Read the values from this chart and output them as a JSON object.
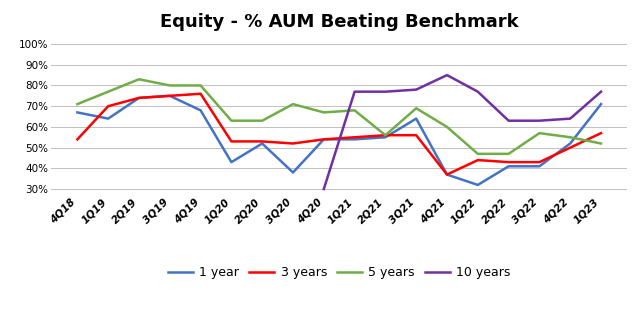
{
  "title": "Equity - % AUM Beating Benchmark",
  "categories": [
    "4Q18",
    "1Q19",
    "2Q19",
    "3Q19",
    "4Q19",
    "1Q20",
    "2Q20",
    "3Q20",
    "4Q20",
    "1Q21",
    "2Q21",
    "3Q21",
    "4Q21",
    "1Q22",
    "2Q22",
    "3Q22",
    "4Q22",
    "1Q23"
  ],
  "series": {
    "1 year": [
      0.67,
      0.64,
      0.74,
      0.75,
      0.68,
      0.43,
      0.52,
      0.38,
      0.54,
      0.54,
      0.55,
      0.64,
      0.37,
      0.32,
      0.41,
      0.41,
      0.52,
      0.71
    ],
    "3 years": [
      0.54,
      0.7,
      0.74,
      0.75,
      0.76,
      0.53,
      0.53,
      0.52,
      0.54,
      0.55,
      0.56,
      0.56,
      0.37,
      0.44,
      0.43,
      0.43,
      0.5,
      0.57
    ],
    "5 years": [
      0.71,
      0.77,
      0.83,
      0.8,
      0.8,
      0.63,
      0.63,
      0.71,
      0.67,
      0.68,
      0.56,
      0.69,
      0.6,
      0.47,
      0.47,
      0.57,
      0.55,
      0.52
    ],
    "10 years": [
      null,
      null,
      null,
      null,
      null,
      null,
      null,
      null,
      0.3,
      0.77,
      0.77,
      0.78,
      0.85,
      0.77,
      0.63,
      0.63,
      0.64,
      0.77
    ]
  },
  "colors": {
    "1 year": "#4472C4",
    "3 years": "#FF0000",
    "5 years": "#70AD47",
    "10 years": "#7030A0"
  },
  "ylim": [
    0.27,
    1.03
  ],
  "yticks": [
    0.3,
    0.4,
    0.5,
    0.6,
    0.7,
    0.8,
    0.9,
    1.0
  ],
  "background_color": "#FFFFFF",
  "grid_color": "#C0C0C0",
  "title_fontsize": 13,
  "legend_fontsize": 9,
  "tick_fontsize": 7.5,
  "linewidth": 1.8
}
